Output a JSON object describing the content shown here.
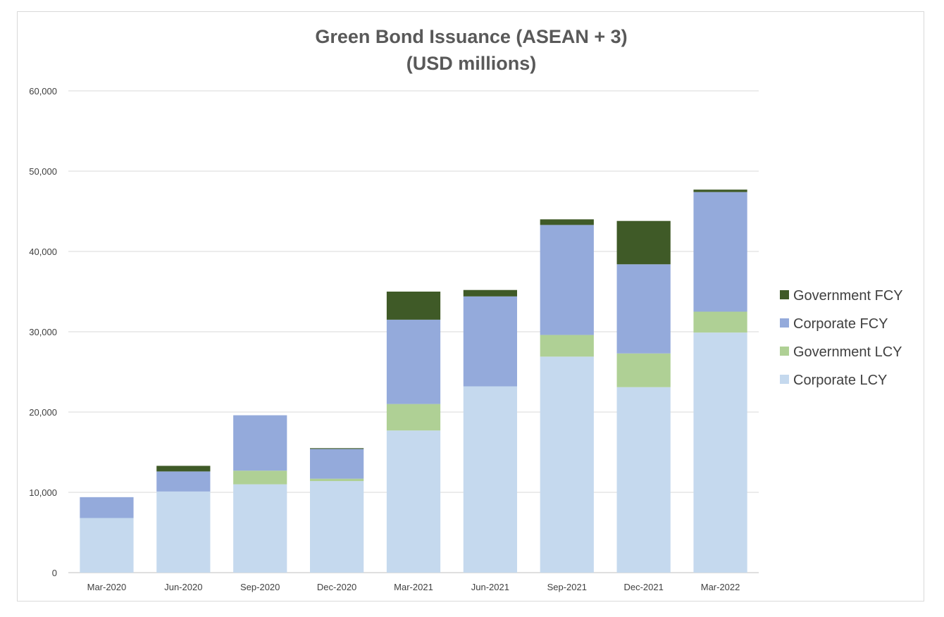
{
  "chart_data": {
    "type": "bar",
    "stacked": true,
    "title": "Green Bond Issuance (ASEAN + 3)",
    "subtitle": "(USD millions)",
    "xlabel": "",
    "ylabel": "",
    "ylim": [
      0,
      60000
    ],
    "y_ticks": [
      0,
      10000,
      20000,
      30000,
      40000,
      50000,
      60000
    ],
    "y_tick_labels": [
      "0",
      "10,000",
      "20,000",
      "30,000",
      "40,000",
      "50,000",
      "60,000"
    ],
    "grid": true,
    "legend_position": "right",
    "categories": [
      "Mar-2020",
      "Jun-2020",
      "Sep-2020",
      "Dec-2020",
      "Mar-2021",
      "Jun-2021",
      "Sep-2021",
      "Dec-2021",
      "Mar-2022"
    ],
    "series": [
      {
        "name": "Corporate LCY",
        "color": "#c5d9ee",
        "values": [
          6800,
          10100,
          11000,
          11400,
          17700,
          23200,
          26900,
          23100,
          29900
        ]
      },
      {
        "name": "Government LCY",
        "color": "#afd095",
        "values": [
          0,
          0,
          1700,
          300,
          3300,
          0,
          2700,
          4200,
          2600
        ]
      },
      {
        "name": "Corporate FCY",
        "color": "#94aadb",
        "values": [
          2600,
          2500,
          6900,
          3700,
          10500,
          11200,
          13700,
          11100,
          14900
        ]
      },
      {
        "name": "Government FCY",
        "color": "#3f5a27",
        "values": [
          0,
          700,
          0,
          100,
          3500,
          800,
          700,
          5400,
          300
        ]
      }
    ],
    "legend_order": [
      "Government FCY",
      "Corporate FCY",
      "Government LCY",
      "Corporate LCY"
    ]
  }
}
